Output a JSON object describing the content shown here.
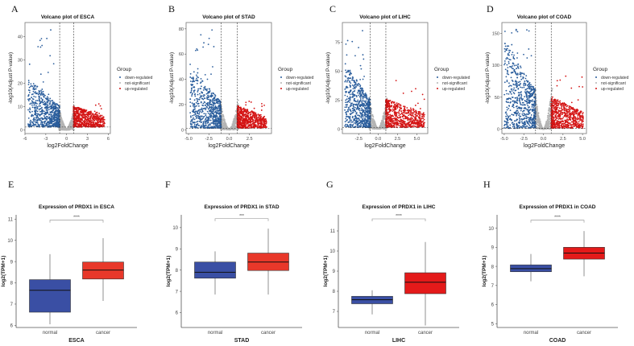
{
  "figure": {
    "panel_letters": [
      "A",
      "B",
      "C",
      "D",
      "E",
      "F",
      "G",
      "H"
    ]
  },
  "chart_data": [
    {
      "id": "A",
      "type": "scatter",
      "subtype": "volcano",
      "title": "Volcano plot of ESCA",
      "xlabel": "log2FoldChange",
      "ylabel": "-log10(Adjust P-value)",
      "xlim": [
        -6,
        6.3
      ],
      "ylim": [
        -1.5,
        46
      ],
      "xticks": [
        -6,
        -3,
        0,
        3,
        6
      ],
      "xtick_labels": [
        "-6",
        "-3",
        "0",
        "3",
        "6"
      ],
      "yticks": [
        0,
        10,
        20,
        30,
        40
      ],
      "ytick_labels": [
        "0",
        "10",
        "20",
        "30",
        "40"
      ],
      "fc_threshold": 1,
      "p_threshold": 1.3,
      "legend": {
        "title": "Group",
        "position": "right",
        "entries": [
          "down-regulated",
          "not-significant",
          "up-regulated"
        ]
      },
      "down_extent": {
        "xmin": -5.6,
        "ymax": 44,
        "bulk_ymax": 15
      },
      "up_extent": {
        "xmax": 5.5,
        "ymax": 13,
        "bulk_ymax": 9
      }
    },
    {
      "id": "B",
      "type": "scatter",
      "subtype": "volcano",
      "title": "Volcano plot of STAD",
      "xlabel": "log2FoldChange",
      "ylabel": "-log10(Adjust P-value)",
      "xlim": [
        -5.3,
        5.2
      ],
      "ylim": [
        -3,
        85
      ],
      "xticks": [
        -5,
        -2.5,
        0,
        2.5
      ],
      "xtick_labels": [
        "-5.0",
        "-2.5",
        "0.0",
        "2.5"
      ],
      "yticks": [
        0,
        20,
        40,
        60,
        80
      ],
      "ytick_labels": [
        "0",
        "20",
        "40",
        "60",
        "80"
      ],
      "fc_threshold": 1,
      "p_threshold": 1.3,
      "legend": {
        "title": "Group",
        "position": "right",
        "entries": [
          "down-regulated",
          "not-significant",
          "up-regulated"
        ]
      },
      "down_extent": {
        "xmin": -4.8,
        "ymax": 81,
        "bulk_ymax": 35
      },
      "up_extent": {
        "xmax": 4.6,
        "ymax": 30,
        "bulk_ymax": 18
      }
    },
    {
      "id": "C",
      "type": "scatter",
      "subtype": "volcano",
      "title": "Volcano plot of LIHC",
      "xlabel": "log2FoldChange",
      "ylabel": "-log10(Adjust P-value)",
      "xlim": [
        -4.6,
        6.4
      ],
      "ylim": [
        -4,
        92
      ],
      "xticks": [
        -2.5,
        0,
        2.5,
        5
      ],
      "xtick_labels": [
        "-2.5",
        "0.0",
        "2.5",
        "5.0"
      ],
      "yticks": [
        0,
        25,
        50,
        75
      ],
      "ytick_labels": [
        "0",
        "25",
        "50",
        "75"
      ],
      "fc_threshold": 1,
      "p_threshold": 1.3,
      "legend": {
        "title": "Group",
        "position": "right",
        "entries": [
          "down-regulated",
          "not-significant",
          "up-regulated"
        ]
      },
      "down_extent": {
        "xmin": -4.3,
        "ymax": 87,
        "bulk_ymax": 40
      },
      "up_extent": {
        "xmax": 6.0,
        "ymax": 42,
        "bulk_ymax": 25
      }
    },
    {
      "id": "D",
      "type": "scatter",
      "subtype": "volcano",
      "title": "Volcano plot of COAD",
      "xlabel": "log2FoldChange",
      "ylabel": "-log10(Adjust P-value)",
      "xlim": [
        -5.3,
        5.5
      ],
      "ylim": [
        -7,
        167
      ],
      "xticks": [
        -5,
        -2.5,
        0,
        2.5,
        5
      ],
      "xtick_labels": [
        "-5.0",
        "-2.5",
        "0.0",
        "2.5",
        "5.0"
      ],
      "yticks": [
        0,
        50,
        100,
        150
      ],
      "ytick_labels": [
        "0",
        "50",
        "100",
        "150"
      ],
      "fc_threshold": 1,
      "p_threshold": 1.3,
      "legend": {
        "title": "Group",
        "position": "right",
        "entries": [
          "down-regulated",
          "not-significant",
          "up-regulated"
        ]
      },
      "down_extent": {
        "xmin": -5.0,
        "ymax": 158,
        "bulk_ymax": 100
      },
      "up_extent": {
        "xmax": 5.1,
        "ymax": 85,
        "bulk_ymax": 50
      }
    },
    {
      "id": "E",
      "type": "box",
      "title": "Expression of PRDX1 in ESCA",
      "xlabel": "ESCA",
      "ylabel": "log2(TPM+1)",
      "categories": [
        "normal",
        "cancer"
      ],
      "ylim": [
        5.9,
        11.2
      ],
      "yticks": [
        6,
        7,
        8,
        9,
        10,
        11
      ],
      "boxes": [
        {
          "min": 6.05,
          "q1": 6.62,
          "median": 7.65,
          "q3": 8.15,
          "max": 9.35
        },
        {
          "min": 7.15,
          "q1": 8.18,
          "median": 8.6,
          "q3": 8.98,
          "max": 10.1
        }
      ],
      "bracket_y": 10.95,
      "significance": "****"
    },
    {
      "id": "F",
      "type": "box",
      "title": "Expression of PRDX1 in STAD",
      "xlabel": "STAD",
      "ylabel": "log2(TPM+1)",
      "categories": [
        "normal",
        "cancer"
      ],
      "ylim": [
        5.3,
        10.6
      ],
      "yticks": [
        6,
        7,
        8,
        9,
        10
      ],
      "boxes": [
        {
          "min": 6.85,
          "q1": 7.62,
          "median": 7.9,
          "q3": 8.38,
          "max": 8.88
        },
        {
          "min": 6.85,
          "q1": 7.98,
          "median": 8.38,
          "q3": 8.8,
          "max": 9.95
        }
      ],
      "bracket_y": 10.42,
      "significance": "***"
    },
    {
      "id": "G",
      "type": "box",
      "title": "Expression of PRDX1 in LIHC",
      "xlabel": "LIHC",
      "ylabel": "log2(TPM+1)",
      "categories": [
        "normal",
        "cancer"
      ],
      "ylim": [
        6.2,
        11.8
      ],
      "yticks": [
        7,
        8,
        9,
        10,
        11
      ],
      "boxes": [
        {
          "min": 6.85,
          "q1": 7.38,
          "median": 7.58,
          "q3": 7.75,
          "max": 8.05
        },
        {
          "min": 6.3,
          "q1": 7.88,
          "median": 8.45,
          "q3": 8.92,
          "max": 10.45
        }
      ],
      "bracket_y": 11.6,
      "significance": "****"
    },
    {
      "id": "H",
      "type": "box",
      "title": "Expression of PRDX1 in COAD",
      "xlabel": "COAD",
      "ylabel": "log2(TPM+1)",
      "categories": [
        "normal",
        "cancer"
      ],
      "ylim": [
        4.8,
        10.7
      ],
      "yticks": [
        5,
        6,
        7,
        8,
        9,
        10
      ],
      "boxes": [
        {
          "min": 7.22,
          "q1": 7.72,
          "median": 7.88,
          "q3": 8.08,
          "max": 8.65
        },
        {
          "min": 7.48,
          "q1": 8.38,
          "median": 8.7,
          "q3": 9.0,
          "max": 9.85
        }
      ],
      "bracket_y": 10.42,
      "significance": "****"
    }
  ],
  "colors": {
    "down": "#2a5d9c",
    "ns": "#b4b4b4",
    "up": "#d41414",
    "box_normal": "#3a4fa4",
    "box_cancer_E": "#e8382a",
    "box_cancer": "#e41a1a",
    "axis": "#555555",
    "text": "#222222"
  }
}
